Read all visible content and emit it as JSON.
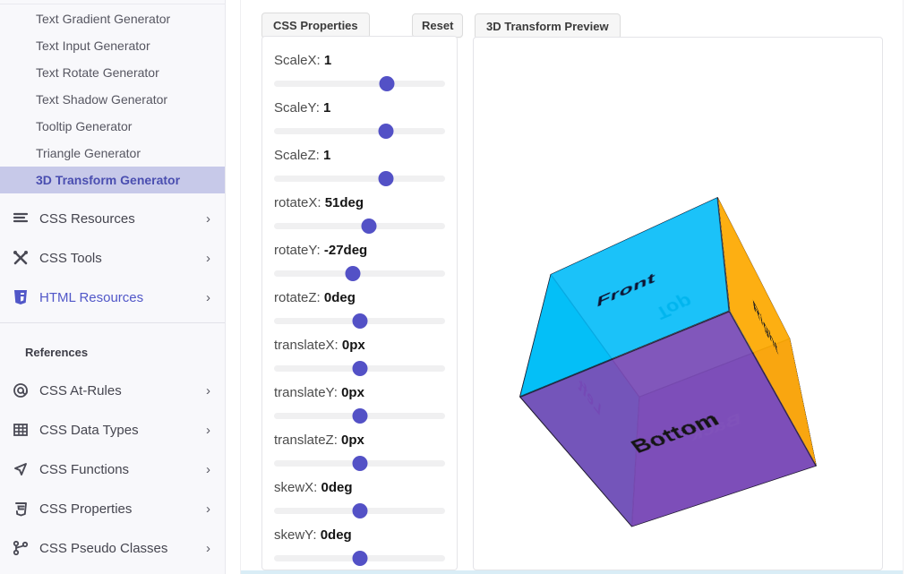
{
  "sidebar": {
    "generators": [
      "Text Gradient Generator",
      "Text Input Generator",
      "Text Rotate Generator",
      "Text Shadow Generator",
      "Tooltip Generator",
      "Triangle Generator",
      "3D Transform Generator"
    ],
    "active_generator": "3D Transform Generator",
    "groups": [
      {
        "label": "CSS Resources",
        "icon": "list-icon"
      },
      {
        "label": "CSS Tools",
        "icon": "tools-icon"
      },
      {
        "label": "HTML Resources",
        "icon": "html5-shield-icon"
      }
    ],
    "references_title": "References",
    "references": [
      {
        "label": "CSS At-Rules",
        "icon": "at-sign-icon"
      },
      {
        "label": "CSS Data Types",
        "icon": "table-icon"
      },
      {
        "label": "CSS Functions",
        "icon": "function-triangle-icon"
      },
      {
        "label": "CSS Properties",
        "icon": "css-brackets-icon"
      },
      {
        "label": "CSS Pseudo Classes",
        "icon": "branch-icon"
      }
    ],
    "chevron": "›"
  },
  "properties_panel": {
    "title": "CSS Properties",
    "reset_label": "Reset",
    "sliders": [
      {
        "label": "ScaleX:",
        "value": "1",
        "percent": 66
      },
      {
        "label": "ScaleY:",
        "value": "1",
        "percent": 65.5
      },
      {
        "label": "ScaleZ:",
        "value": "1",
        "percent": 65.5
      },
      {
        "label": "rotateX:",
        "value": "51deg",
        "percent": 55.5
      },
      {
        "label": "rotateY:",
        "value": "-27deg",
        "percent": 46
      },
      {
        "label": "rotateZ:",
        "value": "0deg",
        "percent": 50
      },
      {
        "label": "translateX:",
        "value": "0px",
        "percent": 50
      },
      {
        "label": "translateY:",
        "value": "0px",
        "percent": 50
      },
      {
        "label": "translateZ:",
        "value": "0px",
        "percent": 50
      },
      {
        "label": "skewX:",
        "value": "0deg",
        "percent": 50
      },
      {
        "label": "skewY:",
        "value": "0deg",
        "percent": 50
      }
    ]
  },
  "preview_panel": {
    "title": "3D Transform Preview",
    "transform": {
      "rotateX": "51deg",
      "rotateY": "-27deg"
    },
    "cube_faces": [
      {
        "name": "front",
        "label": "Front",
        "color": "rgba(0,186,248,0.88)",
        "text_color": "#0e1230"
      },
      {
        "name": "back",
        "label": "Back",
        "color": "rgba(158,112,222,0.90)",
        "text_color": "#cdb0f0"
      },
      {
        "name": "right",
        "label": "Right",
        "color": "rgba(255,169,0,0.93)",
        "text_color": "#1f1f1f"
      },
      {
        "name": "left",
        "label": "Left",
        "color": "rgba(0,220,236,0.88)",
        "text_color": "#2b2ba6"
      },
      {
        "name": "top",
        "label": "Top",
        "color": "rgba(160,244,250,0.35)",
        "text_color": "#008d9e"
      },
      {
        "name": "bottom",
        "label": "Bottom",
        "color": "rgba(122,74,182,0.93)",
        "text_color": "#141414"
      }
    ]
  },
  "colors": {
    "accent": "#5351c6",
    "active_item_bg": "#c7c9e9",
    "active_item_text": "#4a4eb0",
    "sidebar_bg": "#f8f8fb",
    "bottom_strip": "#d9edf6"
  }
}
